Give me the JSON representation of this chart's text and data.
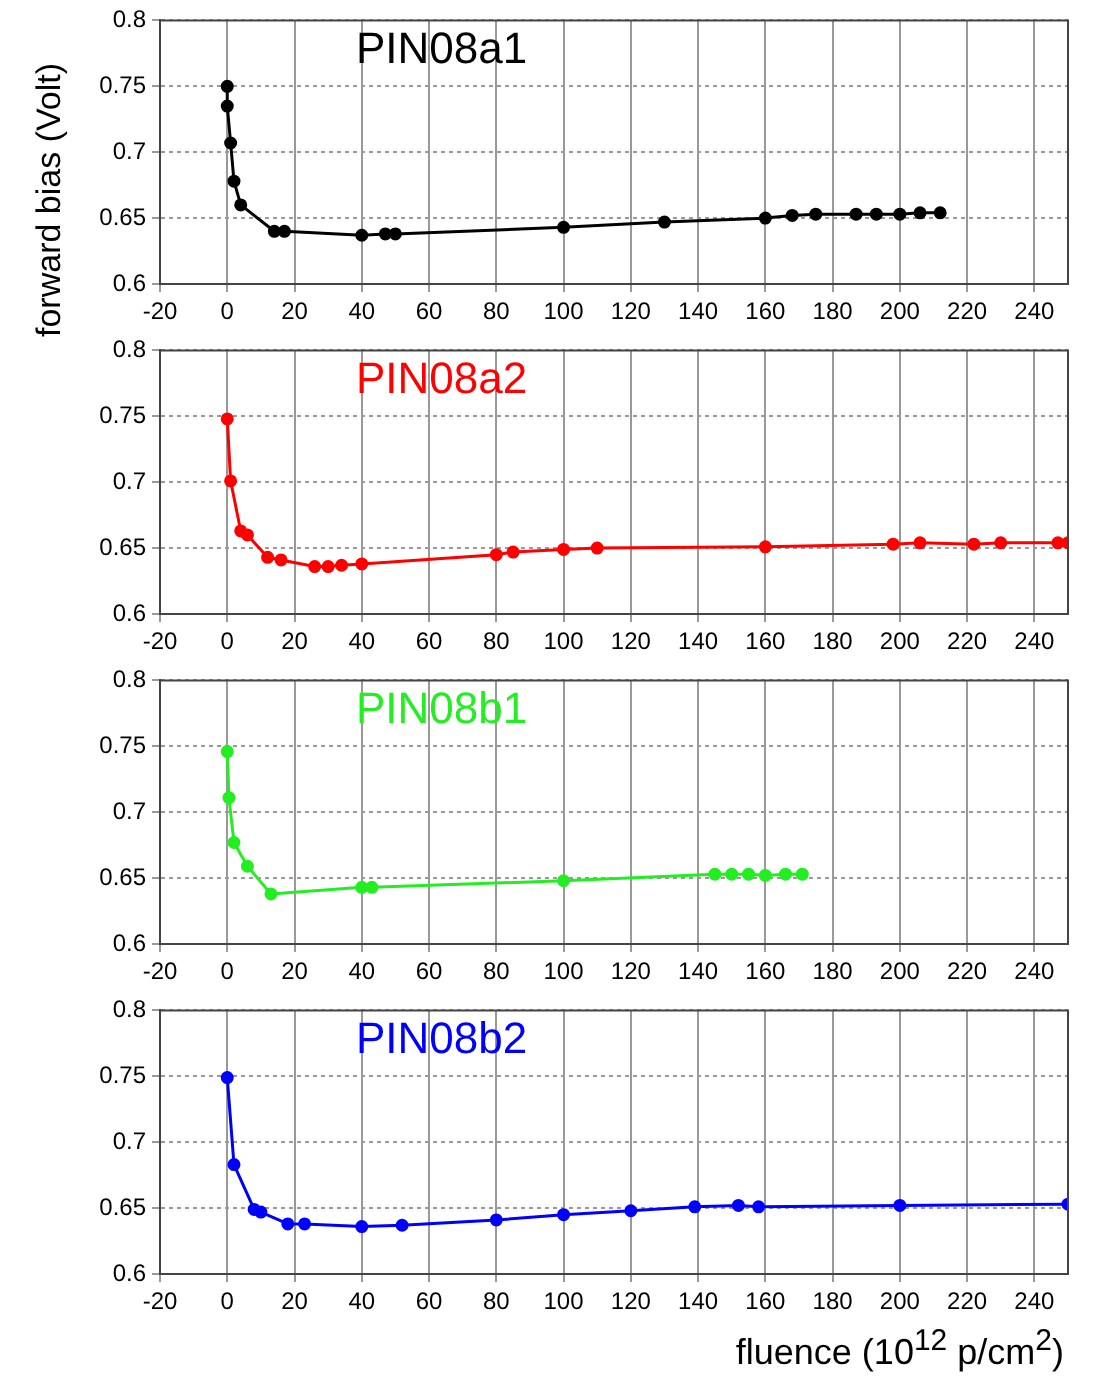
{
  "chart_data": [
    {
      "type": "line",
      "ylabel": "forward bias (Volt)",
      "xlim": [
        -20,
        250
      ],
      "xticks": [
        -20,
        0,
        20,
        40,
        60,
        80,
        100,
        120,
        140,
        160,
        180,
        200,
        220,
        240
      ],
      "ylim": [
        0.6,
        0.8
      ],
      "yticks": [
        0.6,
        0.65,
        0.7,
        0.75,
        0.8
      ],
      "grid": true,
      "marker": "circle",
      "series": [
        {
          "name": "PIN08a1",
          "color": "#000000",
          "x": [
            0,
            0,
            1,
            2,
            4,
            14,
            17,
            40,
            47,
            50,
            100,
            130,
            160,
            168,
            175,
            187,
            193,
            200,
            206,
            212
          ],
          "values": [
            0.75,
            0.735,
            0.707,
            0.678,
            0.66,
            0.64,
            0.64,
            0.637,
            0.638,
            0.638,
            0.643,
            0.647,
            0.65,
            0.652,
            0.653,
            0.653,
            0.653,
            0.653,
            0.654,
            0.654
          ]
        }
      ]
    },
    {
      "type": "line",
      "xlim": [
        -20,
        250
      ],
      "xticks": [
        -20,
        0,
        20,
        40,
        60,
        80,
        100,
        120,
        140,
        160,
        180,
        200,
        220,
        240
      ],
      "ylim": [
        0.6,
        0.8
      ],
      "yticks": [
        0.6,
        0.65,
        0.7,
        0.75,
        0.8
      ],
      "grid": true,
      "marker": "circle",
      "series": [
        {
          "name": "PIN08a2",
          "color": "#ff0000",
          "x": [
            0,
            1,
            4,
            6,
            12,
            16,
            26,
            30,
            34,
            40,
            80,
            85,
            100,
            110,
            160,
            198,
            206,
            222,
            230,
            247,
            250
          ],
          "values": [
            0.748,
            0.701,
            0.663,
            0.66,
            0.643,
            0.641,
            0.636,
            0.636,
            0.637,
            0.638,
            0.645,
            0.647,
            0.649,
            0.65,
            0.651,
            0.653,
            0.654,
            0.653,
            0.654,
            0.654,
            0.654
          ]
        }
      ]
    },
    {
      "type": "line",
      "xlim": [
        -20,
        250
      ],
      "xticks": [
        -20,
        0,
        20,
        40,
        60,
        80,
        100,
        120,
        140,
        160,
        180,
        200,
        220,
        240
      ],
      "ylim": [
        0.6,
        0.8
      ],
      "yticks": [
        0.6,
        0.65,
        0.7,
        0.75,
        0.8
      ],
      "grid": true,
      "marker": "circle",
      "series": [
        {
          "name": "PIN08b1",
          "color": "#22ee22",
          "x": [
            0,
            0.5,
            2,
            6,
            13,
            40,
            43,
            100,
            145,
            150,
            155,
            160,
            166,
            171
          ],
          "values": [
            0.746,
            0.711,
            0.677,
            0.659,
            0.638,
            0.643,
            0.643,
            0.648,
            0.653,
            0.653,
            0.653,
            0.652,
            0.653,
            0.653
          ]
        }
      ]
    },
    {
      "type": "line",
      "xlabel": "fluence (10$^{12}$ p/cm$^{2}$)",
      "xlim": [
        -20,
        250
      ],
      "xticks": [
        -20,
        0,
        20,
        40,
        60,
        80,
        100,
        120,
        140,
        160,
        180,
        200,
        220,
        240
      ],
      "ylim": [
        0.6,
        0.8
      ],
      "yticks": [
        0.6,
        0.65,
        0.7,
        0.75,
        0.8
      ],
      "grid": true,
      "marker": "circle",
      "series": [
        {
          "name": "PIN08b2",
          "color": "#0000ff",
          "x": [
            0,
            2,
            8,
            10,
            18,
            23,
            40,
            52,
            80,
            100,
            120,
            139,
            152,
            158,
            200,
            250
          ],
          "values": [
            0.749,
            0.683,
            0.649,
            0.647,
            0.638,
            0.638,
            0.636,
            0.637,
            0.641,
            0.645,
            0.648,
            0.651,
            0.652,
            0.651,
            0.652,
            0.653
          ]
        }
      ]
    }
  ]
}
